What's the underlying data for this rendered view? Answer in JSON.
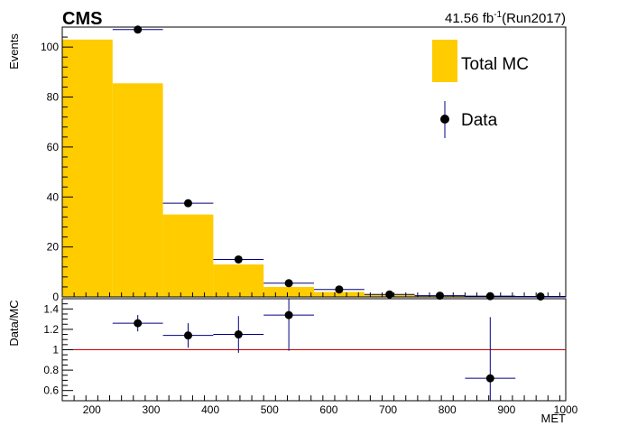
{
  "header": {
    "experiment": "CMS",
    "lumi_value": "41.56 fb",
    "lumi_exp": "-1",
    "lumi_run": "(Run2017)"
  },
  "legend": {
    "mc_label": "Total MC",
    "data_label": "Data",
    "placement": "top-right"
  },
  "colors": {
    "mc_fill": "#ffcc00",
    "data_marker": "#000000",
    "error_bar": "#000080",
    "unity_line": "#cc0000"
  },
  "chart_data": [
    {
      "type": "bar",
      "name": "main",
      "xlabel": "",
      "ylabel": "Events",
      "xlim": [
        150,
        1000
      ],
      "ylim": [
        0,
        108
      ],
      "y_ticks": [
        0,
        20,
        40,
        60,
        80,
        100
      ],
      "mc_bins": [
        {
          "x0": 150,
          "x1": 235,
          "y": 103
        },
        {
          "x0": 235,
          "x1": 320,
          "y": 85.5
        },
        {
          "x0": 320,
          "x1": 405,
          "y": 33
        },
        {
          "x0": 405,
          "x1": 490,
          "y": 13
        },
        {
          "x0": 490,
          "x1": 575,
          "y": 4
        },
        {
          "x0": 575,
          "x1": 660,
          "y": 2
        },
        {
          "x0": 660,
          "x1": 745,
          "y": 1
        },
        {
          "x0": 745,
          "x1": 830,
          "y": 0.6
        },
        {
          "x0": 830,
          "x1": 915,
          "y": 0.4
        },
        {
          "x0": 915,
          "x1": 1000,
          "y": 0.3
        }
      ],
      "data_points": [
        {
          "x": 277.5,
          "y": 107,
          "xerr": 42.5
        },
        {
          "x": 362.5,
          "y": 37.5,
          "xerr": 42.5
        },
        {
          "x": 447.5,
          "y": 15,
          "xerr": 42.5
        },
        {
          "x": 532.5,
          "y": 5.5,
          "xerr": 42.5
        },
        {
          "x": 617.5,
          "y": 3,
          "xerr": 42.5
        },
        {
          "x": 702.5,
          "y": 1,
          "xerr": 42.5
        },
        {
          "x": 787.5,
          "y": 0.5,
          "xerr": 42.5
        },
        {
          "x": 872.5,
          "y": 0.3,
          "xerr": 42.5
        },
        {
          "x": 957.5,
          "y": 0.2,
          "xerr": 42.5
        }
      ]
    },
    {
      "type": "scatter",
      "name": "ratio",
      "xlabel": "MET",
      "ylabel": "Data/MC",
      "xlim": [
        150,
        1000
      ],
      "ylim": [
        0.5,
        1.5
      ],
      "x_ticks": [
        200,
        300,
        400,
        500,
        600,
        700,
        800,
        900,
        1000
      ],
      "y_ticks": [
        0.6,
        0.8,
        1,
        1.2,
        1.4
      ],
      "y_tick_labels": [
        "0.6",
        "0.8",
        "1",
        "1.2",
        "1.4"
      ],
      "reference_line": 1.0,
      "points": [
        {
          "x": 277.5,
          "y": 1.26,
          "xerr": 42.5,
          "yerr_lo": 0.08,
          "yerr_hi": 0.08
        },
        {
          "x": 362.5,
          "y": 1.14,
          "xerr": 42.5,
          "yerr_lo": 0.12,
          "yerr_hi": 0.12
        },
        {
          "x": 447.5,
          "y": 1.15,
          "xerr": 42.5,
          "yerr_lo": 0.18,
          "yerr_hi": 0.18
        },
        {
          "x": 532.5,
          "y": 1.34,
          "xerr": 42.5,
          "yerr_lo": 0.35,
          "yerr_hi": 0.35
        },
        {
          "x": 872.5,
          "y": 0.72,
          "xerr": 42.5,
          "yerr_lo": 0.7,
          "yerr_hi": 0.6
        }
      ]
    }
  ]
}
